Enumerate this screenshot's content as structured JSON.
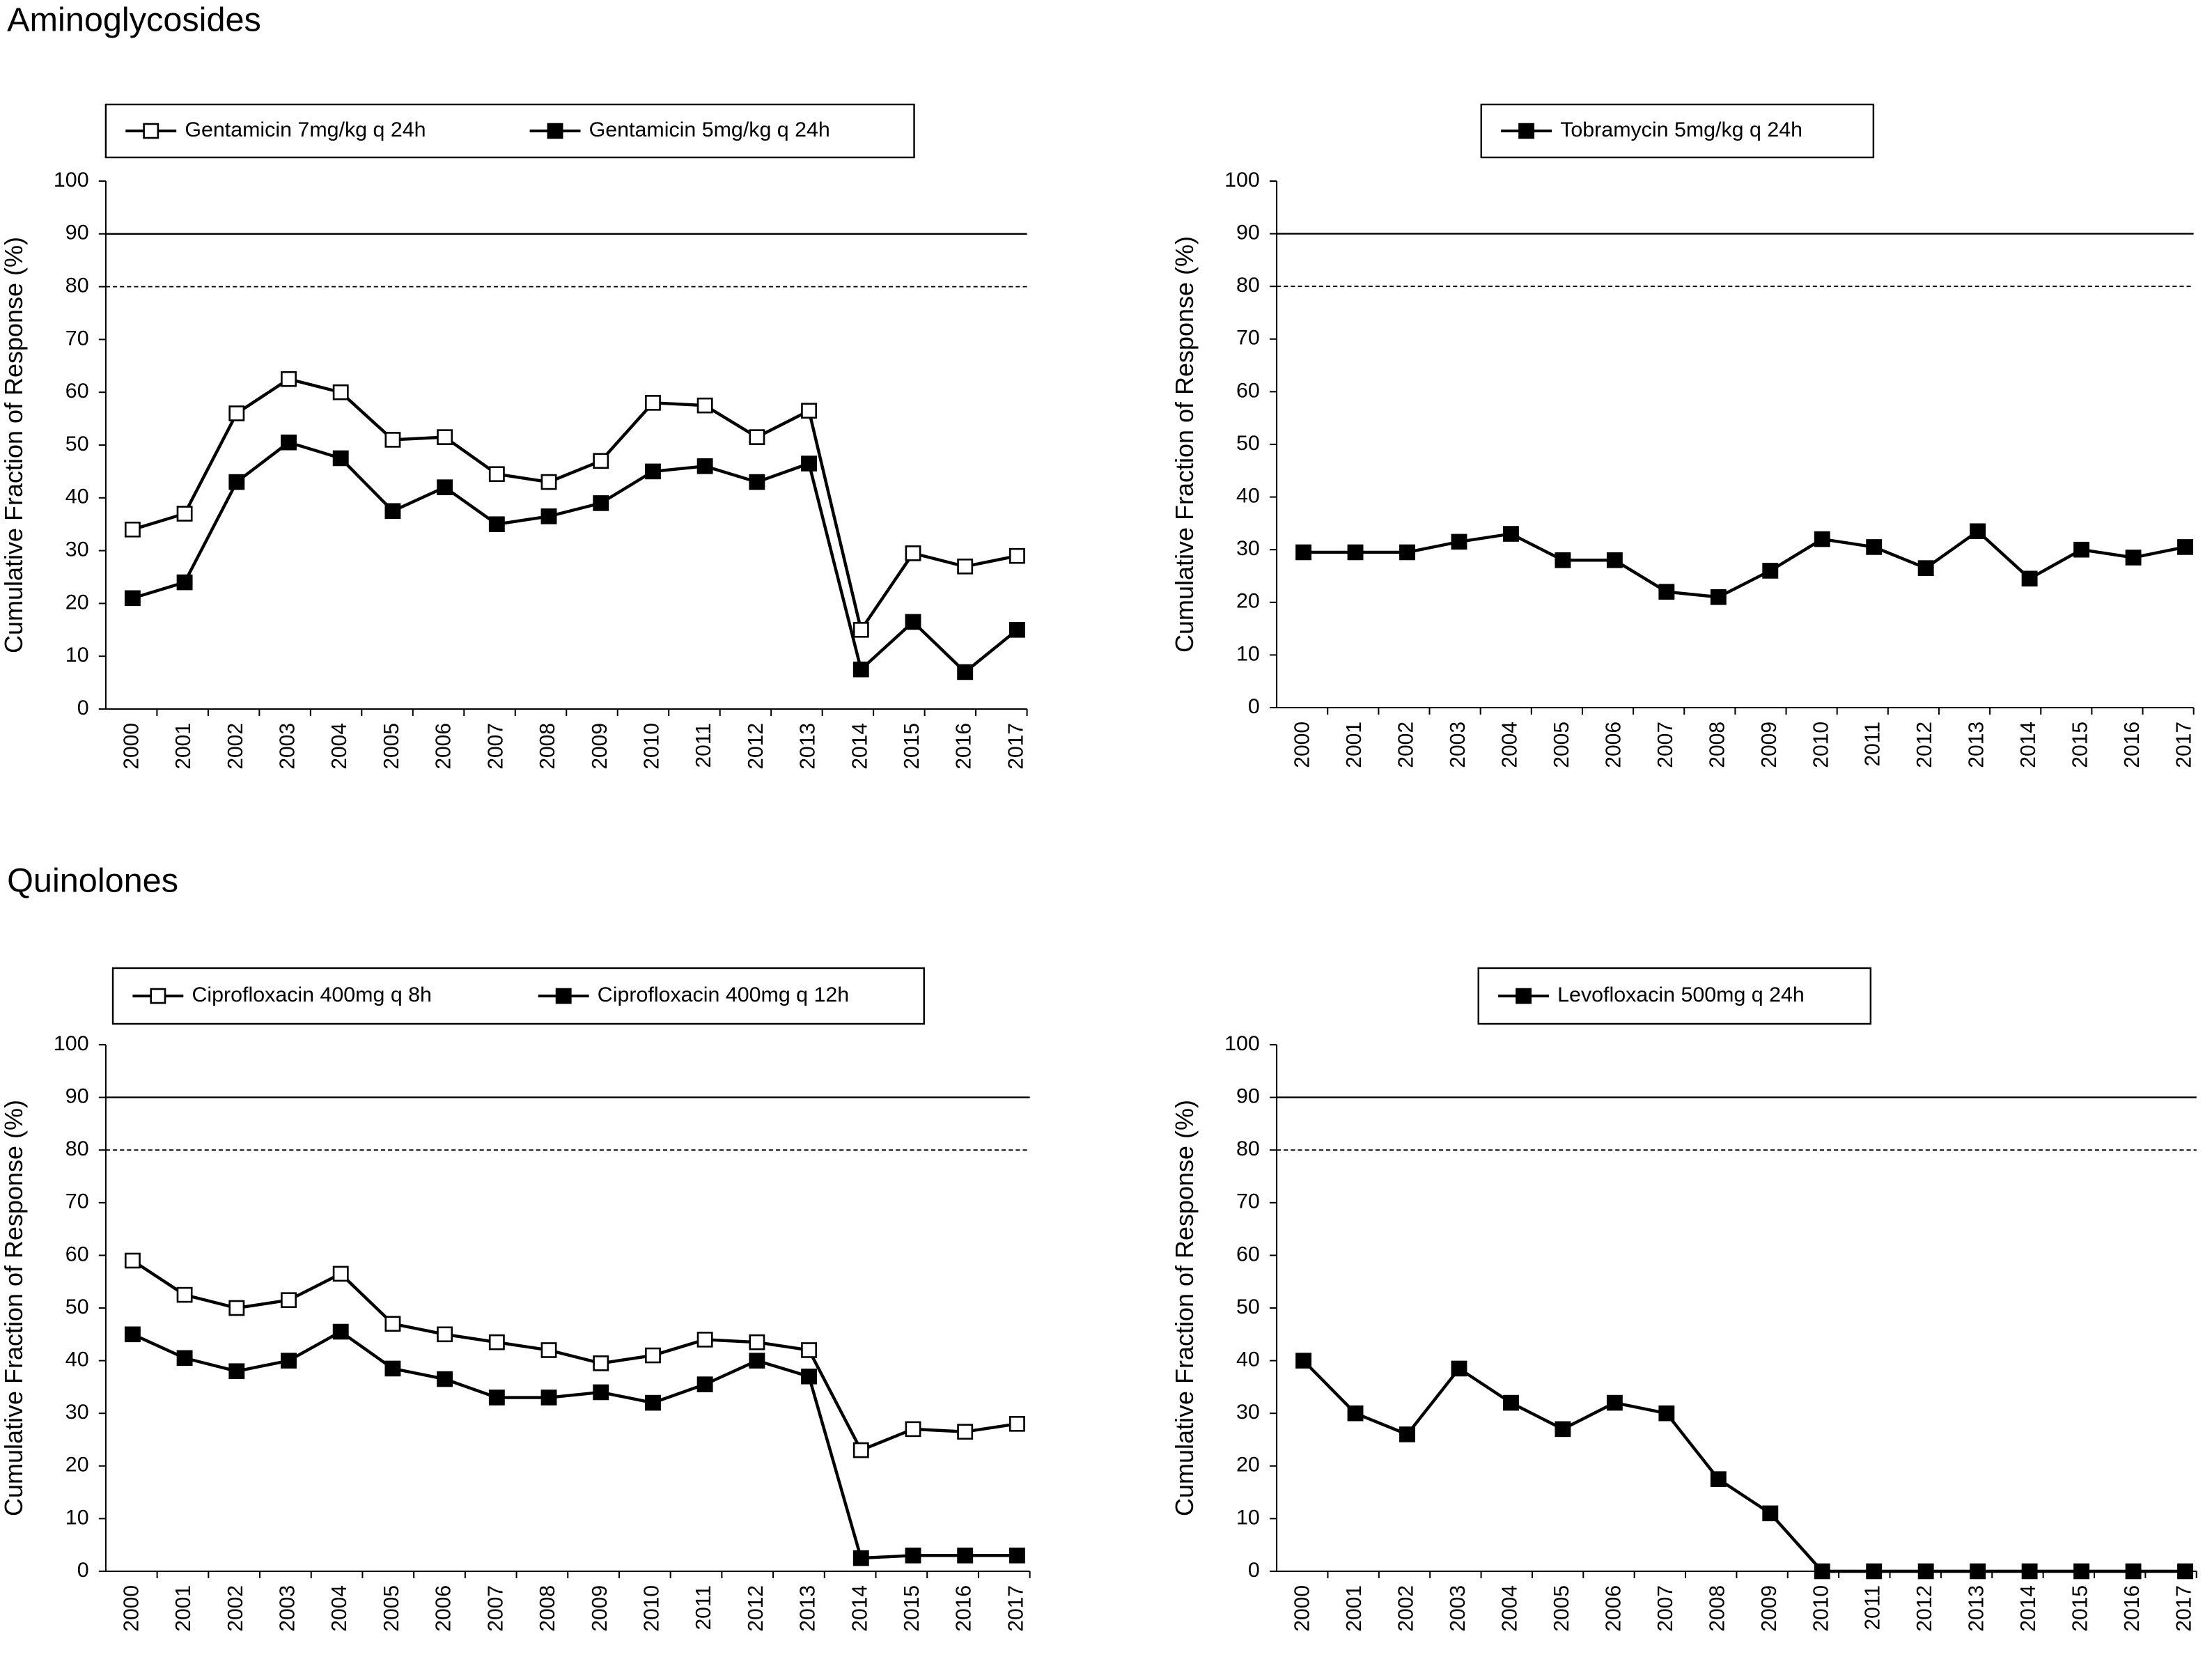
{
  "headings": [
    "Aminoglycosides",
    "Quinolones"
  ],
  "chart_data": [
    {
      "type": "line",
      "ylabel": "Cumulative Fraction of Response (%)",
      "categories": [
        "2000",
        "2001",
        "2002",
        "2003",
        "2004",
        "2005",
        "2006",
        "2007",
        "2008",
        "2009",
        "2010",
        "2011",
        "2012",
        "2013",
        "2014",
        "2015",
        "2016",
        "2017"
      ],
      "series": [
        {
          "name": "Gentamicin 7mg/kg q 24h",
          "color": "#000000",
          "marker": "open-square",
          "values": [
            34,
            37,
            56,
            62.5,
            60,
            51,
            51.5,
            44.5,
            43,
            47,
            58,
            57.5,
            51.5,
            56.5,
            15,
            29.5,
            27,
            29
          ]
        },
        {
          "name": "Gentamicin 5mg/kg  q 24h",
          "color": "#000000",
          "marker": "filled-square",
          "values": [
            21,
            24,
            43,
            50.5,
            47.5,
            37.5,
            42,
            35,
            36.5,
            39,
            45,
            46,
            43,
            46.5,
            7.5,
            16.5,
            7,
            15
          ]
        }
      ],
      "ylim": [
        0,
        100
      ],
      "yticks": [
        0,
        10,
        20,
        30,
        40,
        50,
        60,
        70,
        80,
        90,
        100
      ],
      "reference_lines": [
        {
          "value": 90,
          "style": "solid"
        },
        {
          "value": 80,
          "style": "dashed"
        }
      ],
      "legend": "top"
    },
    {
      "type": "line",
      "ylabel": "Cumulative Fraction of Response (%)",
      "categories": [
        "2000",
        "2001",
        "2002",
        "2003",
        "2004",
        "2005",
        "2006",
        "2007",
        "2008",
        "2009",
        "2010",
        "2011",
        "2012",
        "2013",
        "2014",
        "2015",
        "2016",
        "2017"
      ],
      "series": [
        {
          "name": "Tobramycin 5mg/kg q 24h",
          "color": "#000000",
          "marker": "filled-square",
          "values": [
            29.5,
            29.5,
            29.5,
            31.5,
            33,
            28,
            28,
            22,
            21,
            26,
            32,
            30.5,
            26.5,
            33.5,
            24.5,
            30,
            28.5,
            30.5
          ]
        }
      ],
      "ylim": [
        0,
        100
      ],
      "yticks": [
        0,
        10,
        20,
        30,
        40,
        50,
        60,
        70,
        80,
        90,
        100
      ],
      "reference_lines": [
        {
          "value": 90,
          "style": "solid"
        },
        {
          "value": 80,
          "style": "dashed"
        }
      ],
      "legend": "top"
    },
    {
      "type": "line",
      "ylabel": "Cumulative Fraction of Response (%)",
      "categories": [
        "2000",
        "2001",
        "2002",
        "2003",
        "2004",
        "2005",
        "2006",
        "2007",
        "2008",
        "2009",
        "2010",
        "2011",
        "2012",
        "2013",
        "2014",
        "2015",
        "2016",
        "2017"
      ],
      "series": [
        {
          "name": "Ciprofloxacin 400mg q 8h",
          "color": "#000000",
          "marker": "open-square",
          "values": [
            59,
            52.5,
            50,
            51.5,
            56.5,
            47,
            45,
            43.5,
            42,
            39.5,
            41,
            44,
            43.5,
            42,
            23,
            27,
            26.5,
            28
          ]
        },
        {
          "name": "Ciprofloxacin 400mg q 12h",
          "color": "#000000",
          "marker": "filled-square",
          "values": [
            45,
            40.5,
            38,
            40,
            45.5,
            38.5,
            36.5,
            33,
            33,
            34,
            32,
            35.5,
            40,
            37,
            2.5,
            3,
            3,
            3
          ]
        }
      ],
      "ylim": [
        0,
        100
      ],
      "yticks": [
        0,
        10,
        20,
        30,
        40,
        50,
        60,
        70,
        80,
        90,
        100
      ],
      "reference_lines": [
        {
          "value": 90,
          "style": "solid"
        },
        {
          "value": 80,
          "style": "dashed"
        }
      ],
      "legend": "top"
    },
    {
      "type": "line",
      "ylabel": "Cumulative Fraction of Response (%)",
      "categories": [
        "2000",
        "2001",
        "2002",
        "2003",
        "2004",
        "2005",
        "2006",
        "2007",
        "2008",
        "2009",
        "2010",
        "2011",
        "2012",
        "2013",
        "2014",
        "2015",
        "2016",
        "2017"
      ],
      "series": [
        {
          "name": "Levofloxacin 500mg q 24h",
          "color": "#000000",
          "marker": "filled-square",
          "values": [
            40,
            30,
            26,
            38.5,
            32,
            27,
            32,
            30,
            17.5,
            11,
            0,
            0,
            0,
            0,
            0,
            0,
            0,
            0
          ]
        }
      ],
      "ylim": [
        0,
        100
      ],
      "yticks": [
        0,
        10,
        20,
        30,
        40,
        50,
        60,
        70,
        80,
        90,
        100
      ],
      "reference_lines": [
        {
          "value": 90,
          "style": "solid"
        },
        {
          "value": 80,
          "style": "dashed"
        }
      ],
      "legend": "top"
    }
  ]
}
